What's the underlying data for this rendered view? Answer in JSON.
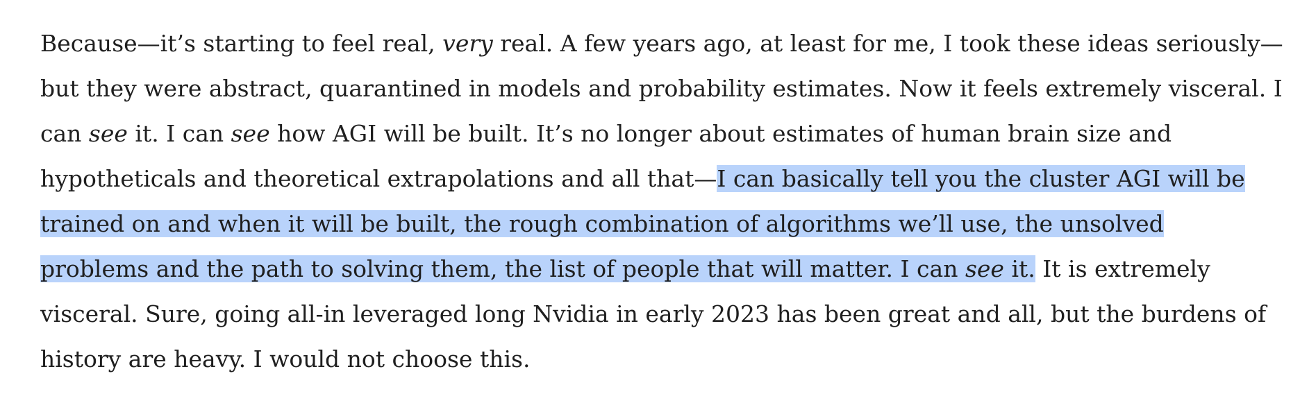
{
  "paragraph": {
    "l1_a": "Because—it’s starting to feel real, ",
    "l1_very": "very",
    "l1_b": " real. A few years ago, at least for me, I took these ideas seriously—",
    "l2": "but they were abstract, quarantined in models and probability estimates. Now it feels extremely visceral. I",
    "l3_a": "can ",
    "l3_see1": "see",
    "l3_b": " it. I can ",
    "l3_see2": "see",
    "l3_c": " how AGI will be built. It’s no longer about estimates of human brain size and",
    "l4_a": "hypotheticals and theoretical extrapolations and all that—",
    "l4_hl": "I can basically tell you the cluster AGI will be",
    "l5_hl": "trained on and when it will be built, the rough combination of algorithms we’ll use, the unsolved",
    "l6_hl_a": "problems and the path to solving them, the list of people that will matter. I can ",
    "l6_hl_see": "see",
    "l6_hl_b": " it.",
    "l6_b": " It is extremely",
    "l7": "visceral. Sure, going all-in leveraged long Nvidia in early 2023 has been great and all, but the burdens of",
    "l8": "history are heavy. I would not choose this."
  },
  "colors": {
    "text": "#1f1f1f",
    "selection_highlight": "#b9d3fb",
    "background": "#ffffff"
  }
}
